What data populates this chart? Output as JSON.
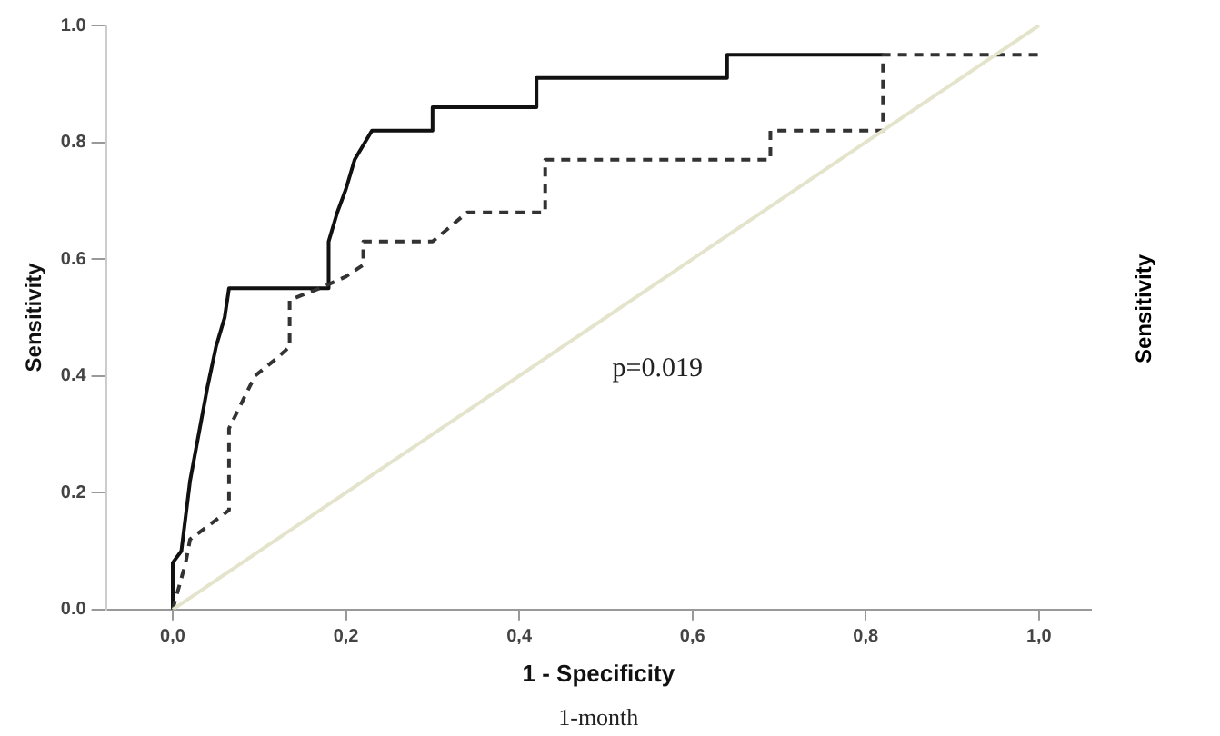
{
  "chart_data": [
    {
      "type": "line",
      "xlabel": "1 - Specificity",
      "ylabel": "Sensitivity",
      "annotations": [
        "p=0.019",
        "1-month"
      ],
      "series": [
        {
          "color": "#111111",
          "line_style": "solid",
          "x": [
            0,
            0,
            0.01,
            0.02,
            0.03,
            0.04,
            0.05,
            0.06,
            0.065,
            0.18,
            0.18,
            0.19,
            0.2,
            0.21,
            0.23,
            0.3,
            0.3,
            0.42,
            0.42,
            0.64,
            0.64,
            0.82
          ],
          "values": [
            0,
            0.08,
            0.1,
            0.22,
            0.3,
            0.38,
            0.45,
            0.5,
            0.55,
            0.55,
            0.63,
            0.68,
            0.72,
            0.77,
            0.82,
            0.82,
            0.86,
            0.86,
            0.91,
            0.91,
            0.95,
            0.95
          ]
        },
        {
          "color": "#333333",
          "line_style": "dashed",
          "x": [
            0,
            0.015,
            0.02,
            0.065,
            0.065,
            0.095,
            0.12,
            0.135,
            0.135,
            0.17,
            0.2,
            0.22,
            0.22,
            0.3,
            0.34,
            0.43,
            0.43,
            0.69,
            0.69,
            0.82,
            0.82,
            1
          ],
          "values": [
            0,
            0.08,
            0.12,
            0.17,
            0.31,
            0.4,
            0.43,
            0.45,
            0.53,
            0.55,
            0.57,
            0.59,
            0.63,
            0.63,
            0.68,
            0.68,
            0.77,
            0.77,
            0.82,
            0.82,
            0.95,
            0.95
          ]
        },
        {
          "color": "#e4e4cc",
          "line_style": "solid",
          "x": [
            0,
            1
          ],
          "values": [
            0,
            1
          ]
        }
      ],
      "xlim": [
        -0.077,
        1.06
      ],
      "ylim": [
        0,
        1
      ],
      "xticks": [
        {
          "value": 0,
          "label": "0,0"
        },
        {
          "value": 0.2,
          "label": "0,2"
        },
        {
          "value": 0.4,
          "label": "0,4"
        },
        {
          "value": 0.6,
          "label": "0,6"
        },
        {
          "value": 0.8,
          "label": "0,8"
        },
        {
          "value": 1,
          "label": "1,0"
        }
      ],
      "yticks": [
        {
          "value": 0,
          "label": "0.0"
        },
        {
          "value": 0.2,
          "label": "0.2"
        },
        {
          "value": 0.4,
          "label": "0.4"
        },
        {
          "value": 0.6,
          "label": "0.6"
        },
        {
          "value": 0.8,
          "label": "0.8"
        },
        {
          "value": 1,
          "label": "1.0"
        }
      ],
      "grid": false,
      "legend": false,
      "marker": "none"
    },
    {
      "type": "other",
      "ylabel": "Sensitivity"
    }
  ]
}
